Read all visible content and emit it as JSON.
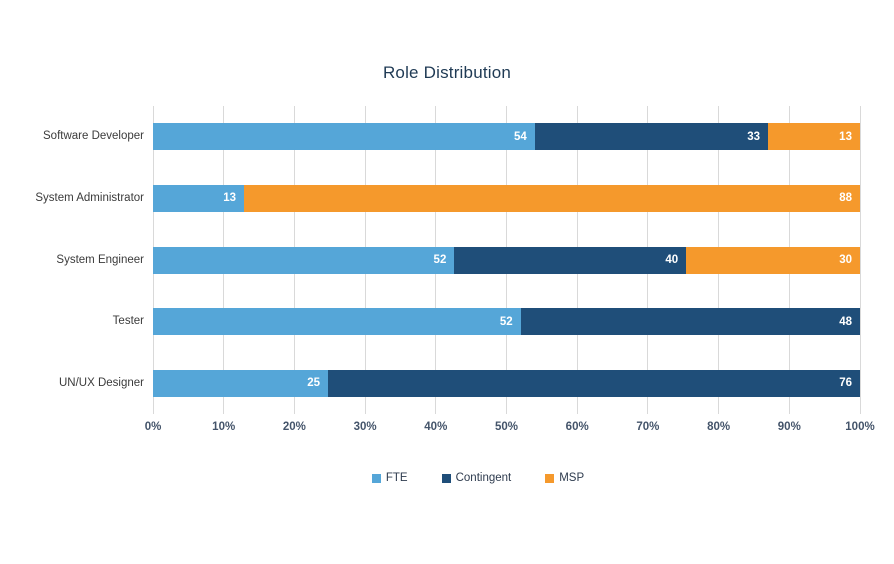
{
  "title": "Role Distribution",
  "chart_data": {
    "type": "bar",
    "orientation": "horizontal",
    "stacked": true,
    "normalized": "each row scaled to 100% of axis",
    "title": "Role Distribution",
    "categories": [
      "Software Developer",
      "System Administrator",
      "System Engineer",
      "Tester",
      "UN/UX Designer"
    ],
    "series": [
      {
        "name": "FTE",
        "color": "#55a6d8",
        "values": [
          54,
          13,
          52,
          52,
          25
        ]
      },
      {
        "name": "Contingent",
        "color": "#1f4e79",
        "values": [
          33,
          0,
          40,
          48,
          76
        ]
      },
      {
        "name": "MSP",
        "color": "#f5992c",
        "values": [
          13,
          88,
          30,
          0,
          0
        ]
      }
    ],
    "x_ticks": [
      "0%",
      "10%",
      "20%",
      "30%",
      "40%",
      "50%",
      "60%",
      "70%",
      "80%",
      "90%",
      "100%"
    ],
    "xlim": [
      0,
      100
    ],
    "grid": true,
    "gridline_color": "#d9d9d9",
    "legend_position": "bottom",
    "value_labels": "white, right-aligned inside segment, shown only when value > 0"
  },
  "colors": {
    "title_text": "#1f3a54",
    "axis_tick_text": "#44546a",
    "category_text": "#3b3b3b",
    "background": "#ffffff"
  }
}
